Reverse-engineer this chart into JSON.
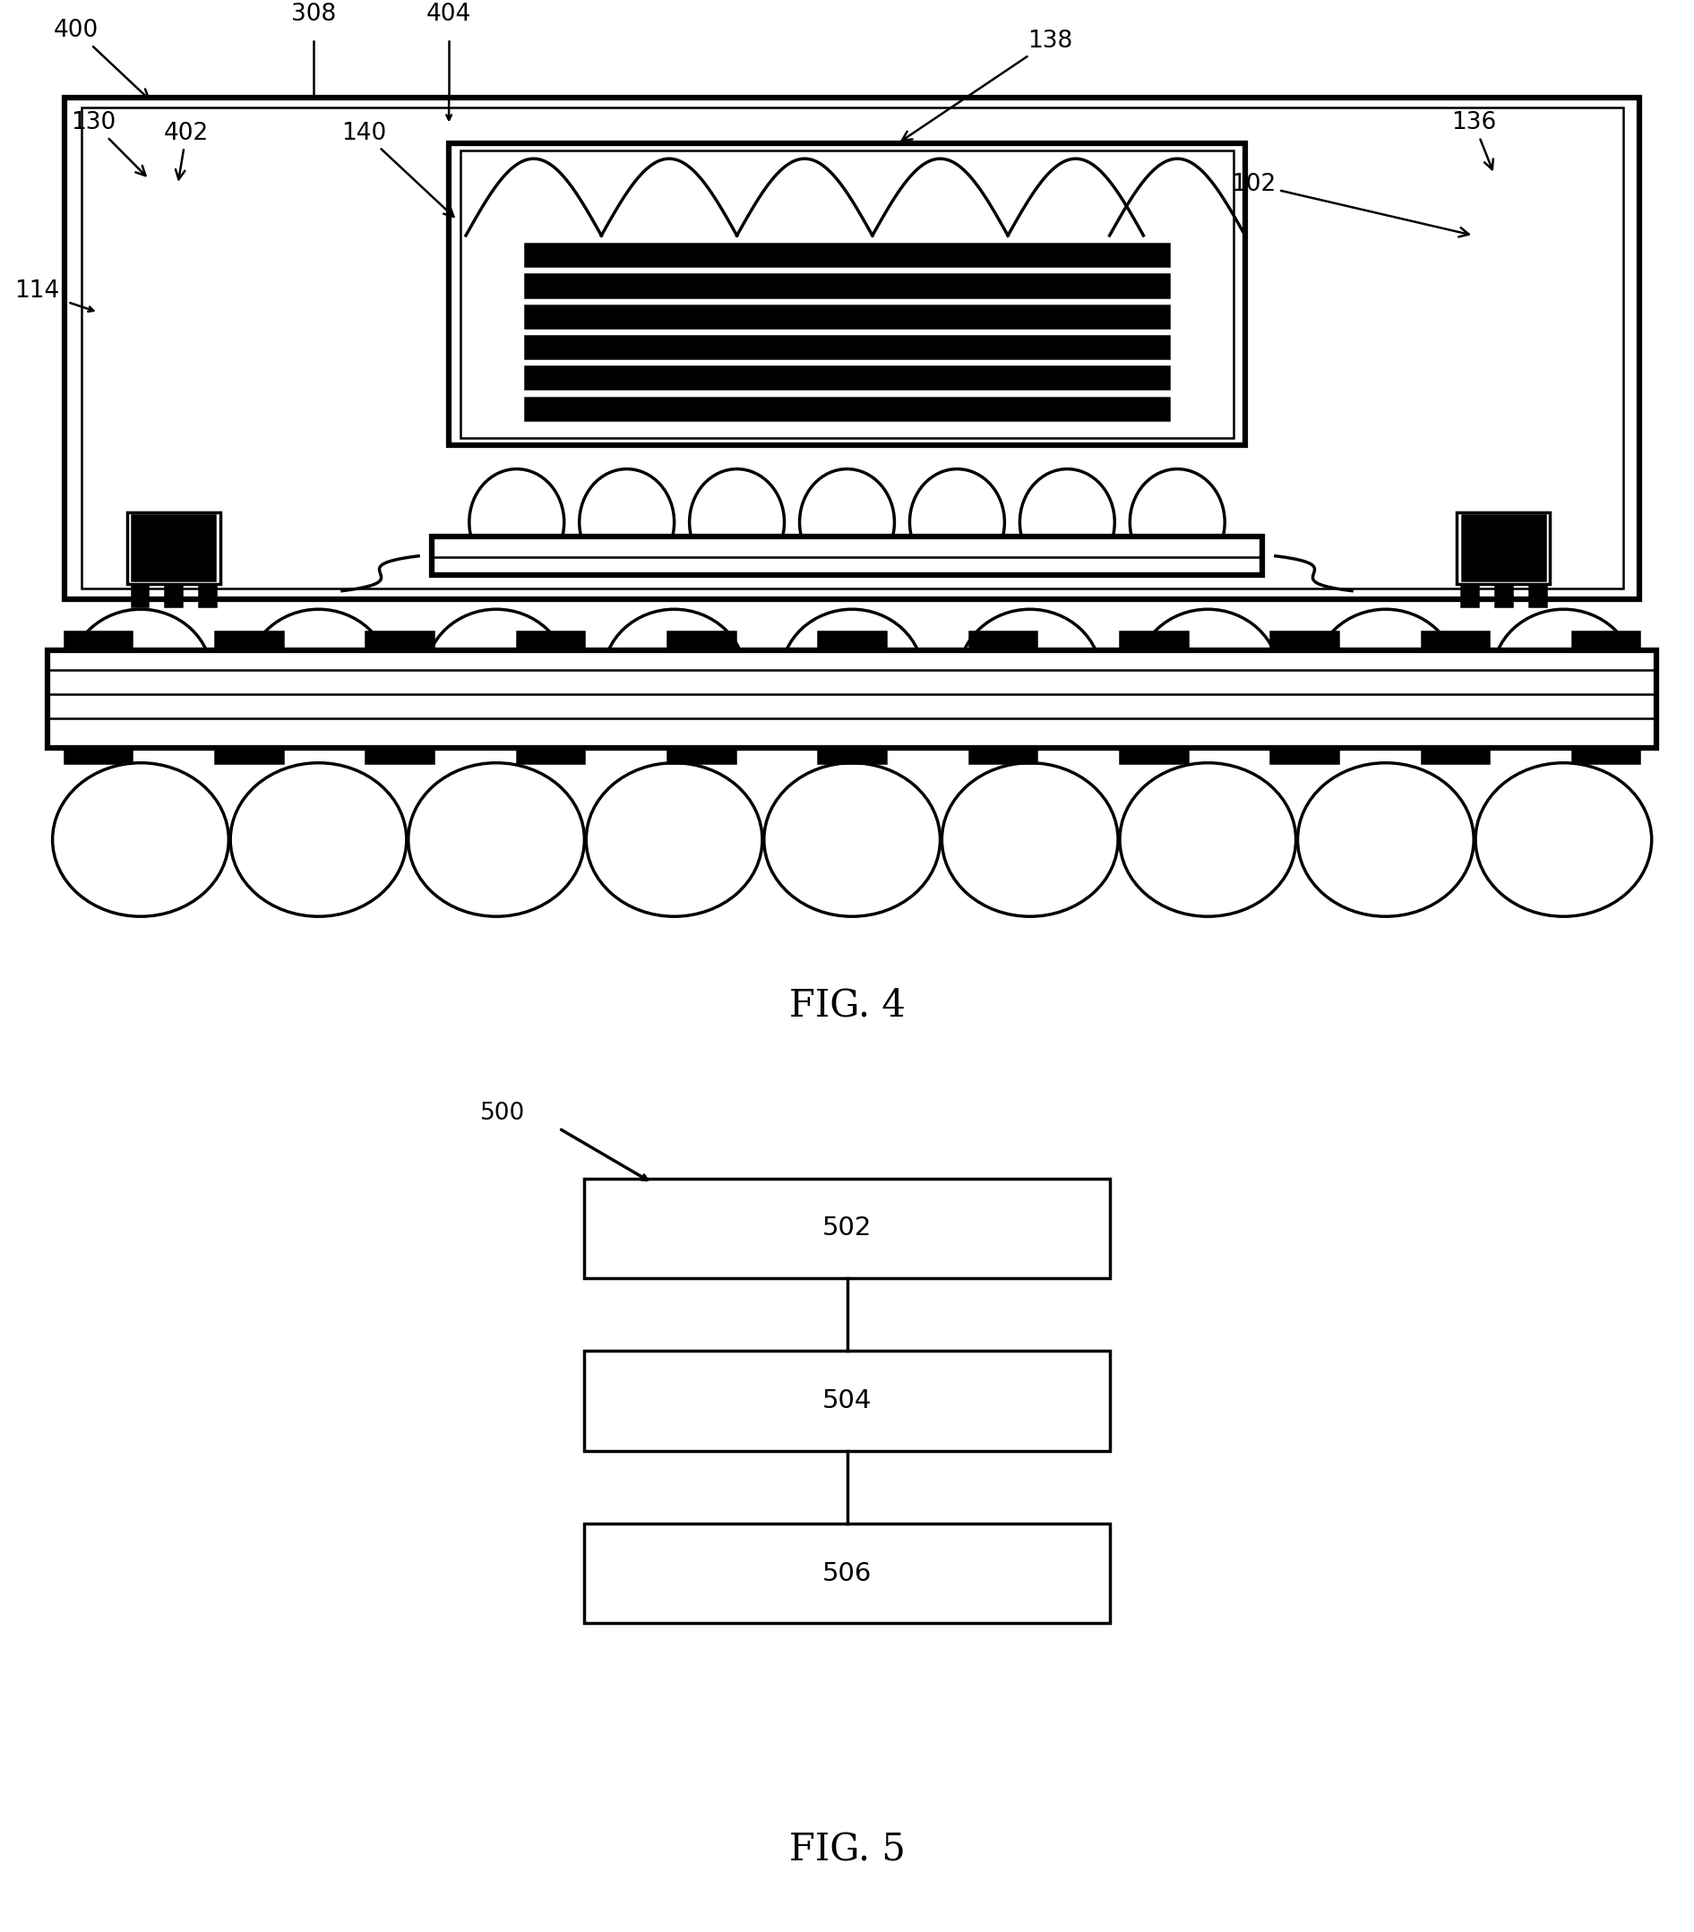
{
  "fig4_label": "FIG. 4",
  "fig5_label": "FIG. 5",
  "lw": 1.8,
  "lw_thick": 4.5,
  "lw_med": 2.5,
  "bg_color": "#ffffff",
  "line_color": "#000000",
  "label_fs": 19,
  "fig_label_fs": 30
}
